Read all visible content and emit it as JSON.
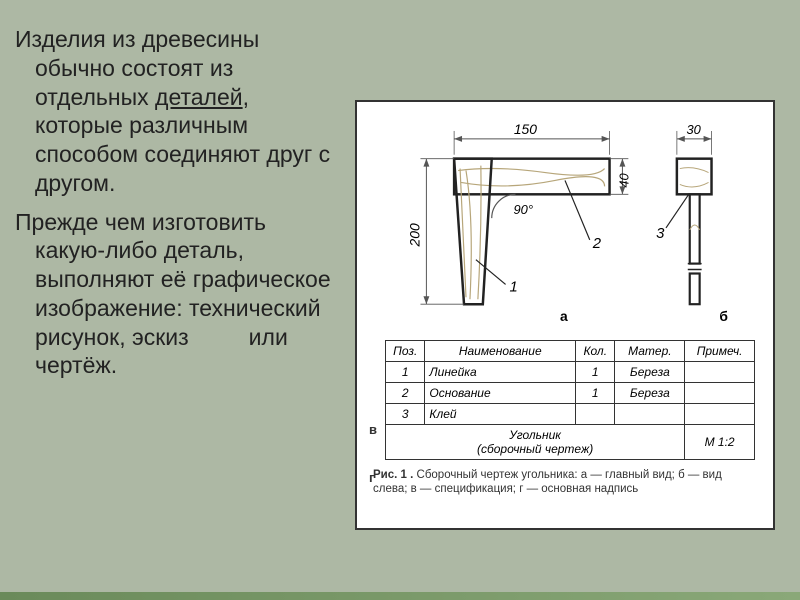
{
  "text": {
    "para1_a": "Изделия из древесины обычно состоят из отдельных ",
    "para1_u": "деталей",
    "para1_b": ", которые различным способом соединяют друг с другом.",
    "para2_a": "Прежде чем изготовить какую-либо деталь, выполняют её графическое изображение: технический рисунок, эскиз",
    "para2_b": "или чертёж."
  },
  "drawing": {
    "dim_top": "150",
    "dim_right_top": "30",
    "dim_left_h": "200",
    "dim_inner_h": "40",
    "angle": "90°",
    "callout_1": "1",
    "callout_2": "2",
    "callout_3": "3",
    "label_a": "а",
    "label_b": "б",
    "hatch_color": "#b7a67a",
    "line_color": "#222222",
    "thin_color": "#555555"
  },
  "side_labels": {
    "v": "в",
    "g": "г"
  },
  "table": {
    "headers": [
      "Поз.",
      "Наименование",
      "Кол.",
      "Матер.",
      "Примеч."
    ],
    "rows": [
      [
        "1",
        "Линейка",
        "1",
        "Береза",
        ""
      ],
      [
        "2",
        "Основание",
        "1",
        "Береза",
        ""
      ],
      [
        "3",
        "Клей",
        "",
        "",
        ""
      ]
    ],
    "title_main": "Угольник",
    "title_sub": "(сборочный чертеж)",
    "scale": "М 1:2"
  },
  "caption": {
    "lead": "Рис. 1 .",
    "text": " Сборочный чертеж угольника: а — главный вид; б — вид слева; в — спецификация; г — основная надпись"
  }
}
